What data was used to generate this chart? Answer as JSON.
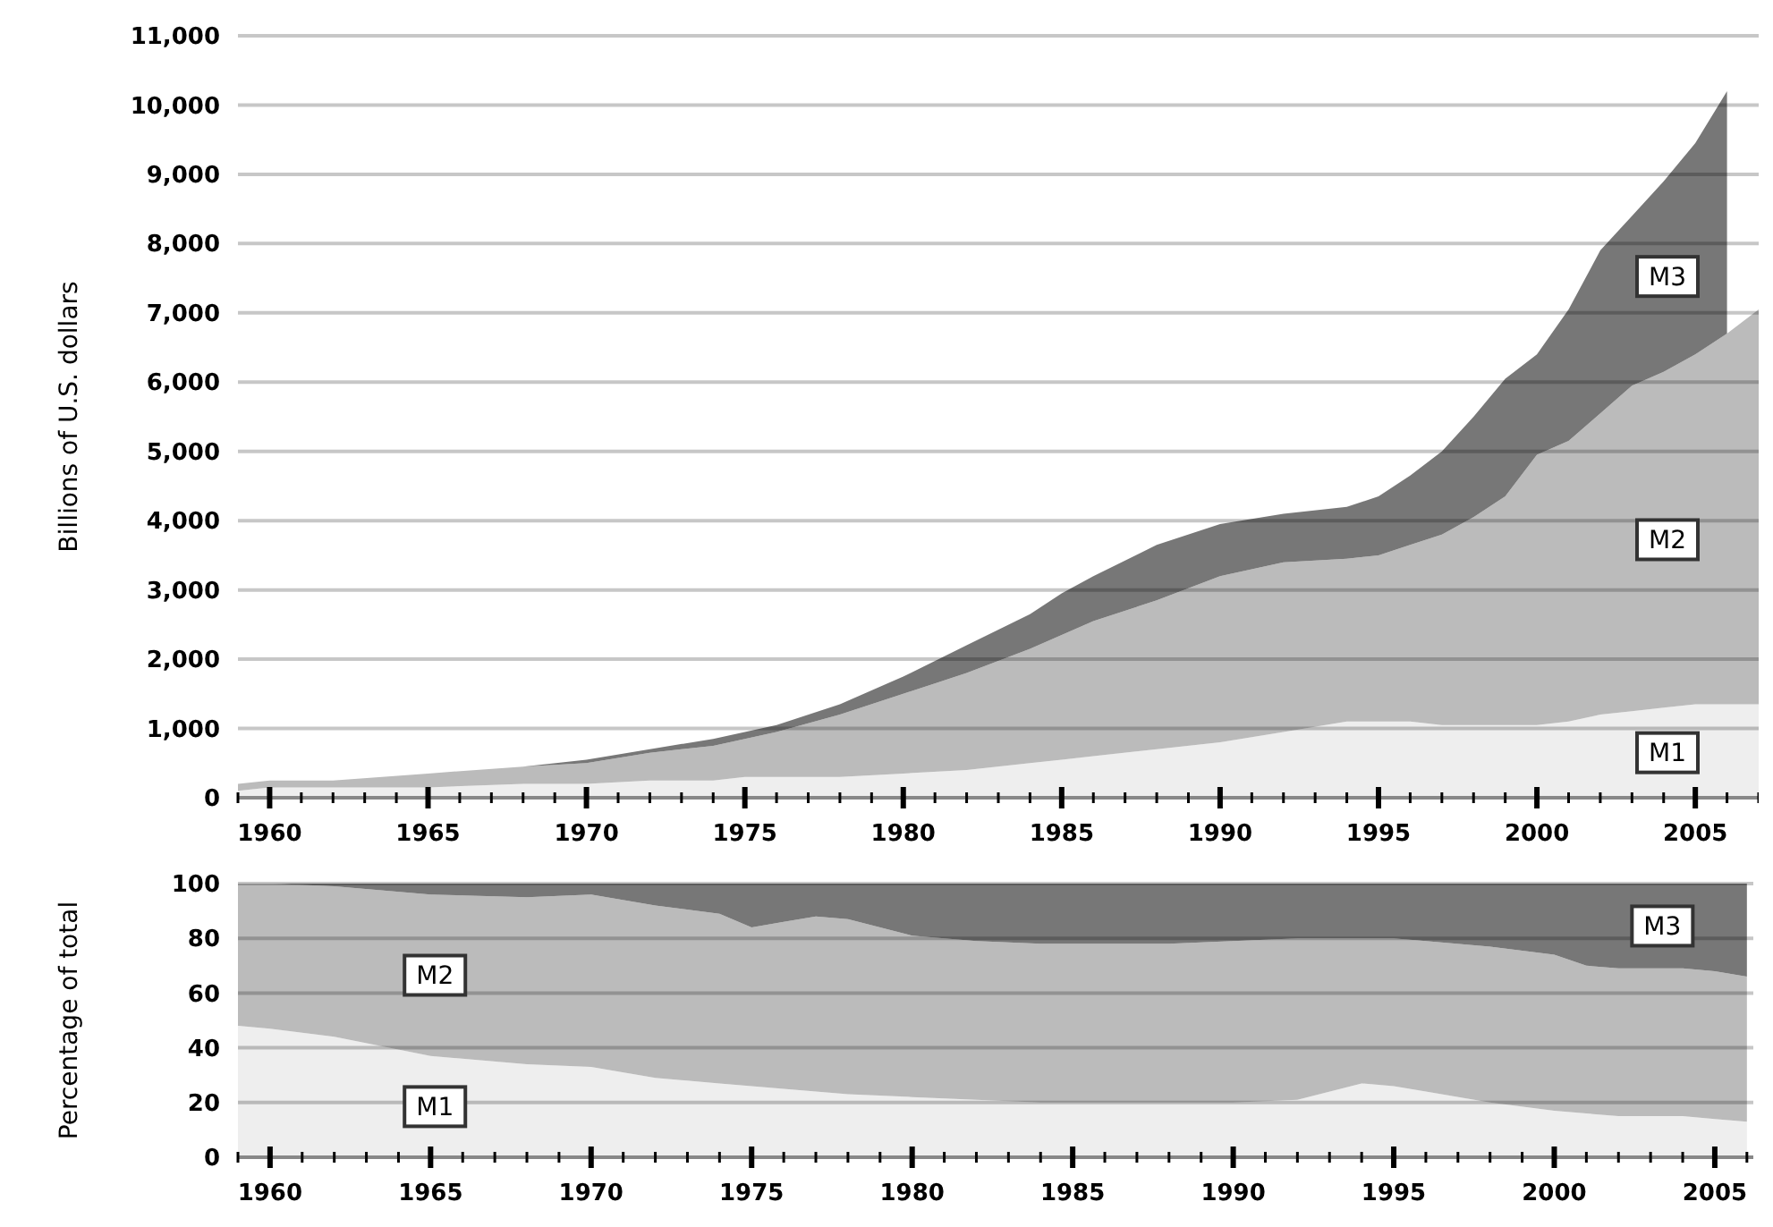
{
  "chart_data": [
    {
      "type": "area",
      "stacked": true,
      "ylabel": "Billions of U.S. dollars",
      "grid": "y",
      "x": [
        1959,
        1960,
        1962,
        1965,
        1968,
        1970,
        1972,
        1974,
        1975,
        1976,
        1978,
        1980,
        1982,
        1984,
        1985,
        1986,
        1988,
        1990,
        1992,
        1994,
        1995,
        1996,
        1997,
        1998,
        1999,
        2000,
        2001,
        2002,
        2003,
        2004,
        2005,
        2006,
        2007
      ],
      "series": [
        {
          "name": "M1",
          "color": "#eeeeee",
          "values": [
            100,
            150,
            150,
            150,
            200,
            200,
            250,
            250,
            300,
            300,
            300,
            350,
            400,
            500,
            550,
            600,
            700,
            800,
            950,
            1100,
            1100,
            1100,
            1050,
            1050,
            1050,
            1050,
            1100,
            1200,
            1250,
            1300,
            1350,
            1350,
            1350
          ]
        },
        {
          "name": "M2",
          "color": "#bbbbbb",
          "values": [
            100,
            100,
            100,
            200,
            250,
            300,
            400,
            500,
            550,
            650,
            900,
            1150,
            1400,
            1650,
            1800,
            1950,
            2150,
            2400,
            2450,
            2350,
            2400,
            2550,
            2750,
            3000,
            3300,
            3900,
            4050,
            4350,
            4700,
            4850,
            5050,
            5350,
            5700
          ]
        },
        {
          "name": "M3",
          "color": "#777777",
          "values": [
            0,
            0,
            0,
            0,
            0,
            50,
            50,
            100,
            100,
            100,
            150,
            250,
            400,
            500,
            600,
            650,
            800,
            750,
            700,
            750,
            850,
            1000,
            1200,
            1450,
            1700,
            1450,
            1900,
            2350,
            2450,
            2750,
            3050,
            3500,
            null
          ]
        }
      ],
      "xlim": [
        1959,
        2007
      ],
      "xticks": [
        {
          "value": 1959,
          "label": null
        },
        1960,
        {
          "value": 1961,
          "label": null
        },
        {
          "value": 1962,
          "label": null
        },
        {
          "value": 1963,
          "label": null
        },
        {
          "value": 1964,
          "label": null
        },
        1965,
        {
          "value": 1966,
          "label": null
        },
        {
          "value": 1967,
          "label": null
        },
        {
          "value": 1968,
          "label": null
        },
        {
          "value": 1969,
          "label": null
        },
        1970,
        {
          "value": 1971,
          "label": null
        },
        {
          "value": 1972,
          "label": null
        },
        {
          "value": 1973,
          "label": null
        },
        {
          "value": 1974,
          "label": null
        },
        1975,
        {
          "value": 1976,
          "label": null
        },
        {
          "value": 1977,
          "label": null
        },
        {
          "value": 1978,
          "label": null
        },
        {
          "value": 1979,
          "label": null
        },
        1980,
        {
          "value": 1981,
          "label": null
        },
        {
          "value": 1982,
          "label": null
        },
        {
          "value": 1983,
          "label": null
        },
        {
          "value": 1984,
          "label": null
        },
        1985,
        {
          "value": 1986,
          "label": null
        },
        {
          "value": 1987,
          "label": null
        },
        {
          "value": 1988,
          "label": null
        },
        {
          "value": 1989,
          "label": null
        },
        1990,
        {
          "value": 1991,
          "label": null
        },
        {
          "value": 1992,
          "label": null
        },
        {
          "value": 1993,
          "label": null
        },
        {
          "value": 1994,
          "label": null
        },
        1995,
        {
          "value": 1996,
          "label": null
        },
        {
          "value": 1997,
          "label": null
        },
        {
          "value": 1998,
          "label": null
        },
        {
          "value": 1999,
          "label": null
        },
        2000,
        {
          "value": 2001,
          "label": null
        },
        {
          "value": 2002,
          "label": null
        },
        {
          "value": 2003,
          "label": null
        },
        {
          "value": 2004,
          "label": null
        },
        2005,
        {
          "value": 2006,
          "label": null
        },
        {
          "value": 2007,
          "label": null
        }
      ],
      "ylim": [
        0,
        11000
      ],
      "yticks": [
        {
          "value": 0,
          "label": "0"
        },
        {
          "value": 1000,
          "label": "1,000"
        },
        {
          "value": 2000,
          "label": "2,000"
        },
        {
          "value": 3000,
          "label": "3,000"
        },
        {
          "value": 4000,
          "label": "4,000"
        },
        {
          "value": 5000,
          "label": "5,000"
        },
        {
          "value": 6000,
          "label": "6,000"
        },
        {
          "value": 7000,
          "label": "7,000"
        },
        {
          "value": 8000,
          "label": "8,000"
        },
        {
          "value": 9000,
          "label": "9,000"
        },
        {
          "value": 10000,
          "label": "10,000"
        },
        {
          "value": 11000,
          "label": "11,000"
        }
      ]
    },
    {
      "type": "area",
      "stacked": true,
      "ylabel": "Percentage of total",
      "grid": "y",
      "x": [
        1959,
        1960,
        1962,
        1965,
        1968,
        1970,
        1972,
        1974,
        1975,
        1976,
        1977,
        1978,
        1980,
        1982,
        1984,
        1985,
        1988,
        1990,
        1992,
        1994,
        1995,
        1996,
        1998,
        2000,
        2001,
        2002,
        2004,
        2005,
        2006
      ],
      "series": [
        {
          "name": "M1",
          "color": "#eeeeee",
          "values": [
            48,
            47,
            44,
            37,
            34,
            33,
            29,
            27,
            26,
            25,
            24,
            23,
            22,
            21,
            20,
            20,
            20,
            20,
            21,
            27,
            26,
            24,
            20,
            17,
            16,
            15,
            15,
            14,
            13
          ]
        },
        {
          "name": "M2",
          "color": "#bbbbbb",
          "values": [
            52,
            53,
            55,
            59,
            61,
            63,
            63,
            62,
            58,
            61,
            64,
            64,
            59,
            58,
            58,
            58,
            58,
            59,
            59,
            53,
            54,
            55,
            57,
            57,
            54,
            54,
            54,
            54,
            53
          ]
        },
        {
          "name": "M3",
          "color": "#777777",
          "values": [
            0,
            0,
            1,
            4,
            5,
            4,
            8,
            11,
            16,
            14,
            12,
            13,
            19,
            21,
            22,
            22,
            22,
            21,
            20,
            20,
            20,
            21,
            23,
            26,
            30,
            31,
            31,
            32,
            34
          ]
        }
      ],
      "xlim": [
        1959,
        2006.2
      ],
      "xticks": [
        {
          "value": 1959,
          "label": null
        },
        1960,
        {
          "value": 1961,
          "label": null
        },
        {
          "value": 1962,
          "label": null
        },
        {
          "value": 1963,
          "label": null
        },
        {
          "value": 1964,
          "label": null
        },
        1965,
        {
          "value": 1966,
          "label": null
        },
        {
          "value": 1967,
          "label": null
        },
        {
          "value": 1968,
          "label": null
        },
        {
          "value": 1969,
          "label": null
        },
        1970,
        {
          "value": 1971,
          "label": null
        },
        {
          "value": 1972,
          "label": null
        },
        {
          "value": 1973,
          "label": null
        },
        {
          "value": 1974,
          "label": null
        },
        1975,
        {
          "value": 1976,
          "label": null
        },
        {
          "value": 1977,
          "label": null
        },
        {
          "value": 1978,
          "label": null
        },
        {
          "value": 1979,
          "label": null
        },
        1980,
        {
          "value": 1981,
          "label": null
        },
        {
          "value": 1982,
          "label": null
        },
        {
          "value": 1983,
          "label": null
        },
        {
          "value": 1984,
          "label": null
        },
        1985,
        {
          "value": 1986,
          "label": null
        },
        {
          "value": 1987,
          "label": null
        },
        {
          "value": 1988,
          "label": null
        },
        {
          "value": 1989,
          "label": null
        },
        1990,
        {
          "value": 1991,
          "label": null
        },
        {
          "value": 1992,
          "label": null
        },
        {
          "value": 1993,
          "label": null
        },
        {
          "value": 1994,
          "label": null
        },
        1995,
        {
          "value": 1996,
          "label": null
        },
        {
          "value": 1997,
          "label": null
        },
        {
          "value": 1998,
          "label": null
        },
        {
          "value": 1999,
          "label": null
        },
        2000,
        {
          "value": 2001,
          "label": null
        },
        {
          "value": 2002,
          "label": null
        },
        {
          "value": 2003,
          "label": null
        },
        {
          "value": 2004,
          "label": null
        },
        2005,
        {
          "value": 2006,
          "label": null
        }
      ],
      "ylim": [
        0,
        100
      ],
      "yticks": [
        0,
        20,
        40,
        60,
        80,
        100
      ]
    }
  ]
}
